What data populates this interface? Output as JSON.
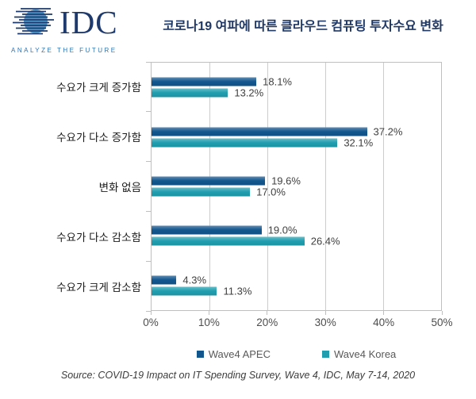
{
  "logo": {
    "text": "IDC",
    "tagline": "ANALYZE THE FUTURE",
    "navy": "#1E3A6D",
    "sphere_blue": "#4E96C7",
    "tagline_blue": "#2E74B5"
  },
  "header": {
    "title": "코로나19 여파에 따른 클라우드 컴퓨팅 투자수요 변화",
    "title_color": "#203864"
  },
  "chart_data": {
    "type": "bar",
    "orientation": "horizontal",
    "title": "코로나19 여파에 따른 클라우드 컴퓨팅 투자수요 변화",
    "categories": [
      "수요가 크게 증가함",
      "수요가 다소 증가함",
      "변화 없음",
      "수요가 다소 감소함",
      "수요가 크게 감소함"
    ],
    "series": [
      {
        "name": "Wave4 APEC",
        "color": "#12568E",
        "values": [
          18.1,
          37.2,
          19.6,
          19.0,
          4.3
        ],
        "labels": [
          "18.1%",
          "37.2%",
          "19.6%",
          "19.0%",
          "4.3%"
        ]
      },
      {
        "name": "Wave4 Korea",
        "color": "#1E9EAF",
        "values": [
          13.2,
          32.1,
          17.0,
          26.4,
          11.3
        ],
        "labels": [
          "13.2%",
          "32.1%",
          "17.0%",
          "26.4%",
          "11.3%"
        ]
      }
    ],
    "xlabel": "",
    "ylabel": "",
    "xlim": [
      0,
      50
    ],
    "x_ticks": [
      "0%",
      "10%",
      "20%",
      "30%",
      "40%",
      "50%"
    ],
    "grid": true,
    "legend_position": "bottom",
    "value_label_color": "#404040",
    "axis_label_color": "#4D4D4D",
    "gridline_color": "#CCCCCC"
  },
  "source": "Source: COVID-19 Impact on IT Spending Survey, Wave 4, IDC, May 7-14, 2020"
}
